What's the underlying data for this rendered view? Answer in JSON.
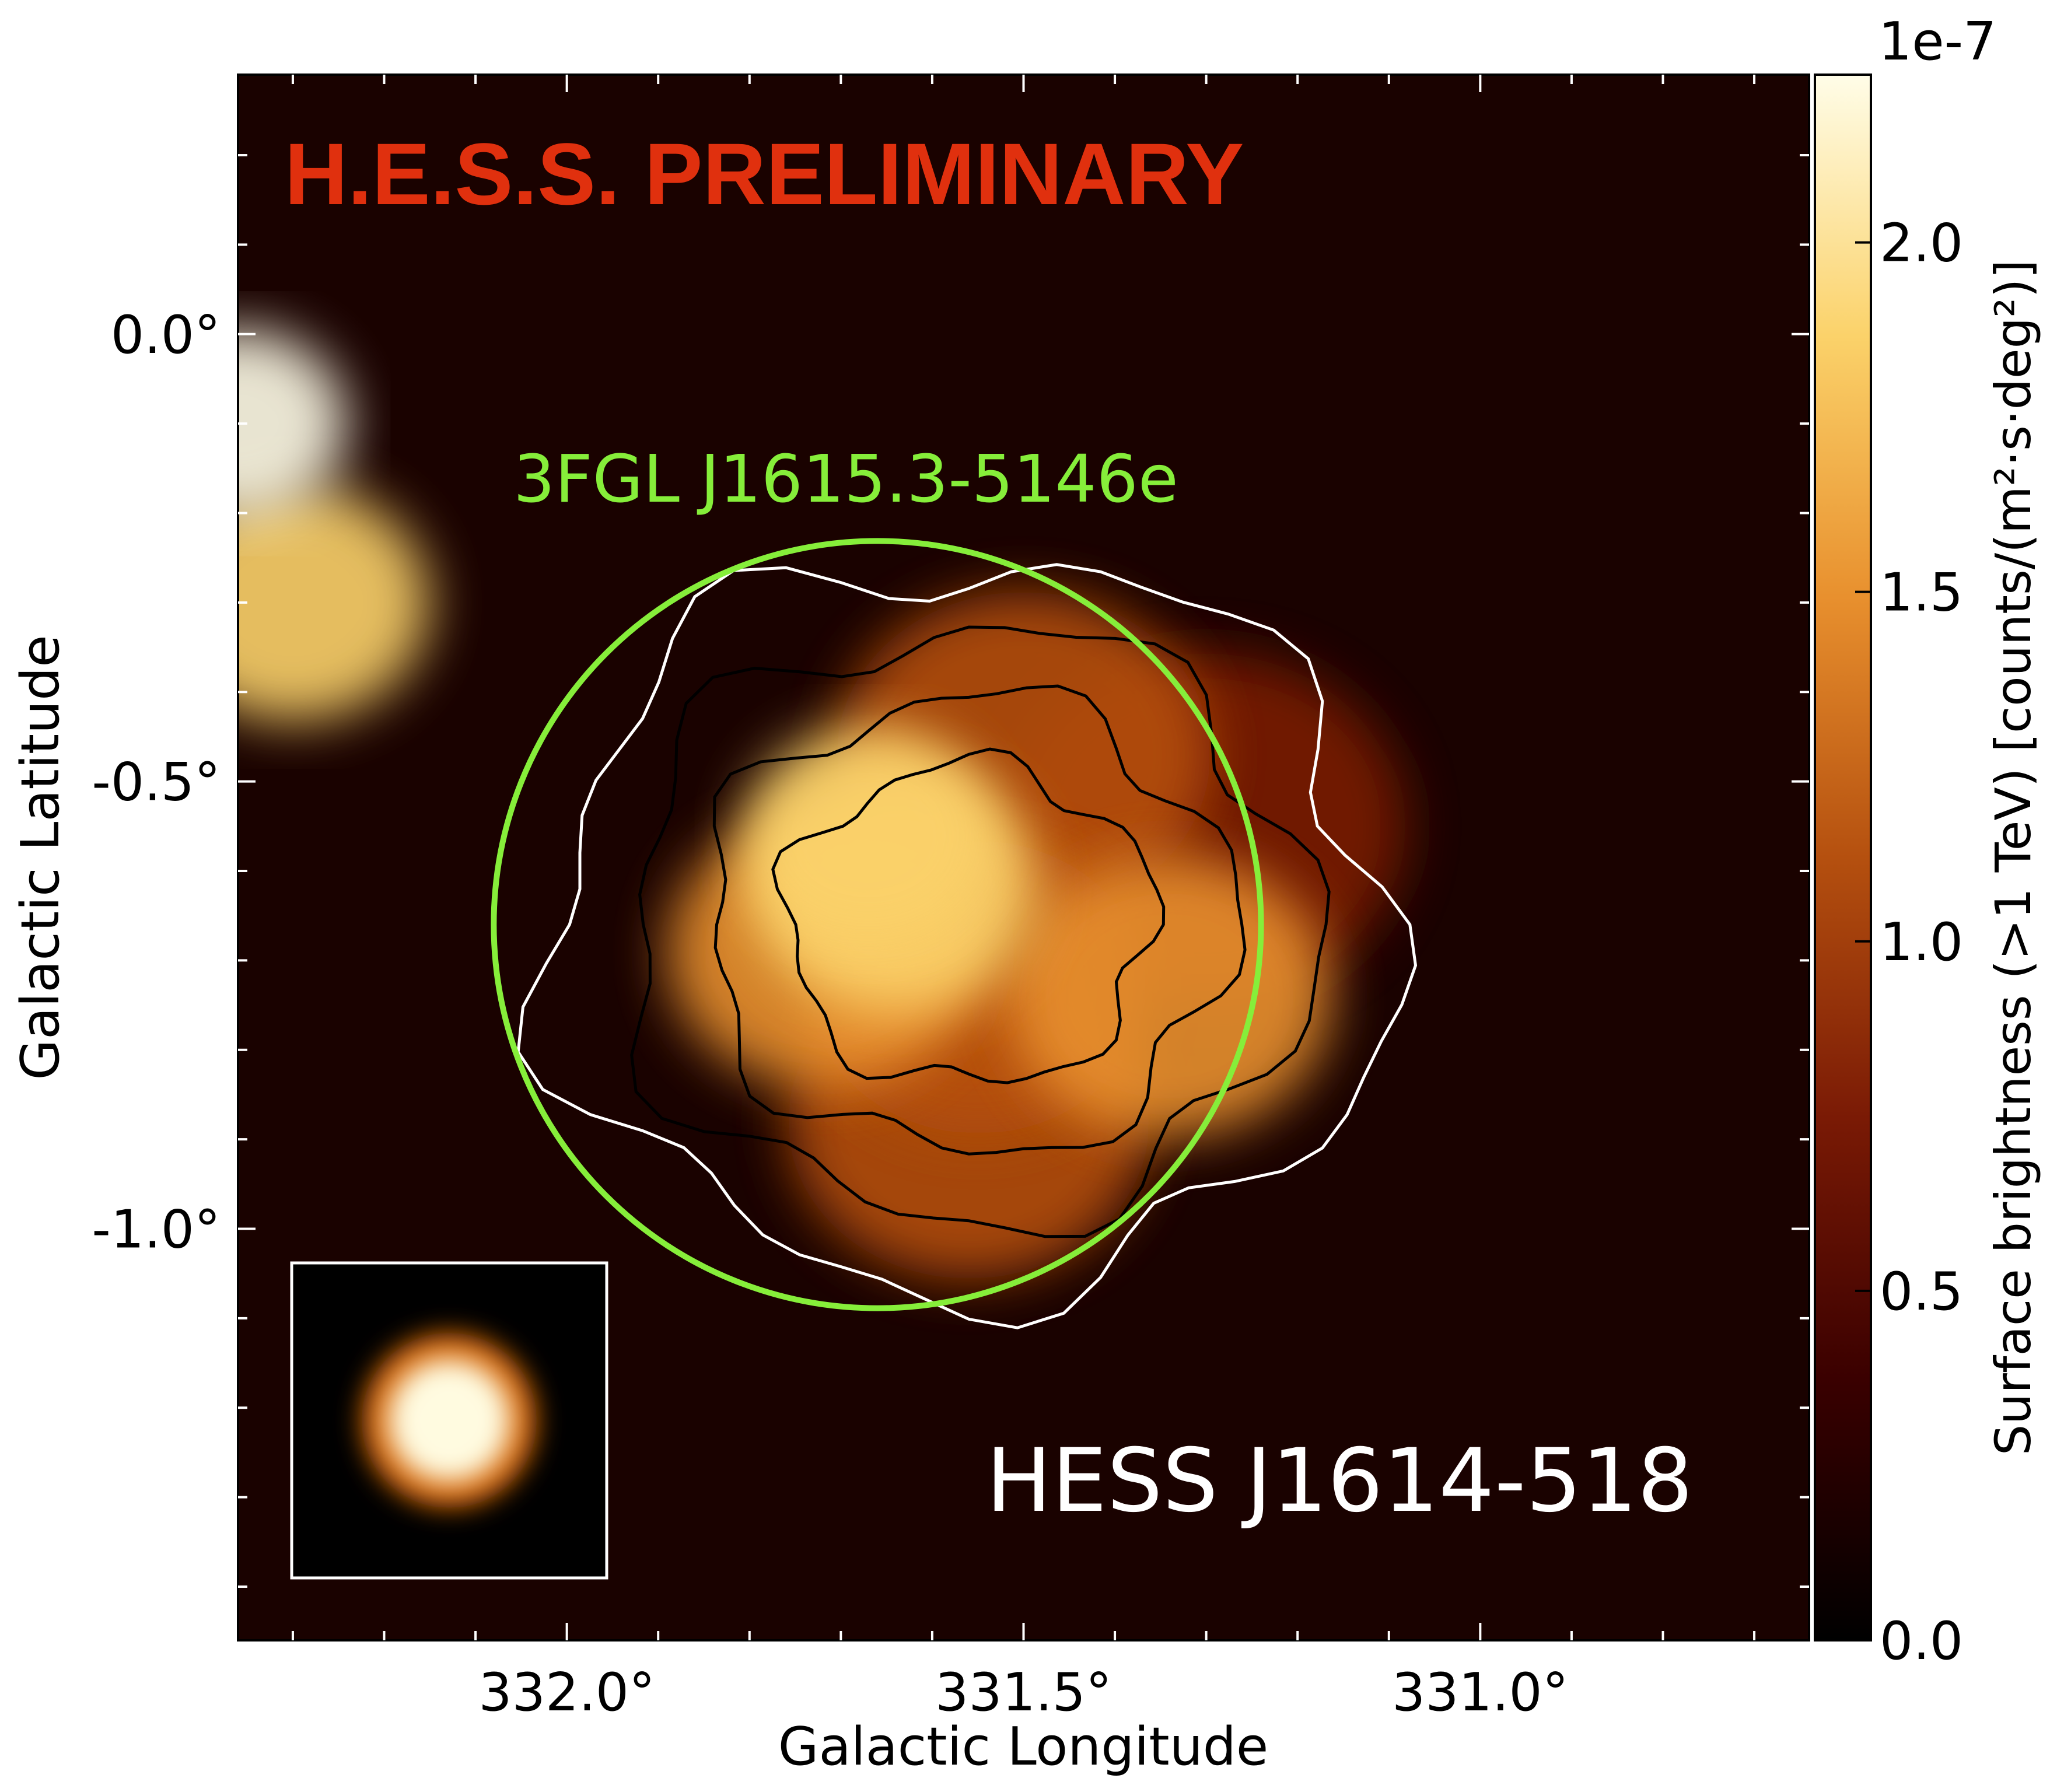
{
  "chart_data": {
    "type": "heatmap",
    "title": "H.E.S.S. PRELIMINARY",
    "xlabel": "Galactic Longitude",
    "ylabel": "Galactic Latitude",
    "xlim": [
      332.36,
      330.64
    ],
    "ylim": [
      -1.46,
      0.29
    ],
    "x_ticks": [
      {
        "value": 332.0,
        "label": "332.0°"
      },
      {
        "value": 331.5,
        "label": "331.5°"
      },
      {
        "value": 331.0,
        "label": "331.0°"
      }
    ],
    "y_ticks": [
      {
        "value": 0.0,
        "label": "0.0°"
      },
      {
        "value": -0.5,
        "label": "-0.5°"
      },
      {
        "value": -1.0,
        "label": "-1.0°"
      }
    ],
    "colorbar": {
      "label": "Surface brightness (>1 TeV) [counts/(m²·s·deg²)]",
      "scale_label": "1e-7",
      "range": [
        0.0,
        2.24
      ],
      "ticks": [
        {
          "value": 0.0,
          "label": "0.0"
        },
        {
          "value": 0.5,
          "label": "0.5"
        },
        {
          "value": 1.0,
          "label": "1.0"
        },
        {
          "value": 1.5,
          "label": "1.5"
        },
        {
          "value": 2.0,
          "label": "2.0"
        }
      ],
      "colormap": [
        "#000000",
        "#3a0000",
        "#7a1a05",
        "#b5500f",
        "#e8902e",
        "#fbd26a",
        "#fffde8"
      ]
    },
    "sources": [
      {
        "label": "HESS J1614-518",
        "color": "#ffffff"
      },
      {
        "label": "3FGL J1615.3-5146e",
        "color": "#86ee3a",
        "circle_center_l": 331.66,
        "circle_center_b": -0.66,
        "circle_radius_deg": 0.42
      }
    ],
    "emission": [
      {
        "l": 331.67,
        "b": -0.56,
        "level": 2.0
      },
      {
        "l": 331.64,
        "b": -0.62,
        "level": 1.7
      },
      {
        "l": 331.72,
        "b": -0.69,
        "level": 1.5
      },
      {
        "l": 331.55,
        "b": -0.73,
        "level": 1.3
      },
      {
        "l": 331.34,
        "b": -0.74,
        "level": 1.4
      },
      {
        "l": 331.5,
        "b": -0.47,
        "level": 1.0
      },
      {
        "l": 331.56,
        "b": -0.88,
        "level": 1.1
      },
      {
        "l": 331.3,
        "b": -0.55,
        "level": 0.8
      },
      {
        "l": 332.36,
        "b": -0.1,
        "level": 2.24
      },
      {
        "l": 332.3,
        "b": -0.3,
        "level": 1.8
      }
    ],
    "contour_levels": 4,
    "psf_inset": true,
    "grid": false
  }
}
